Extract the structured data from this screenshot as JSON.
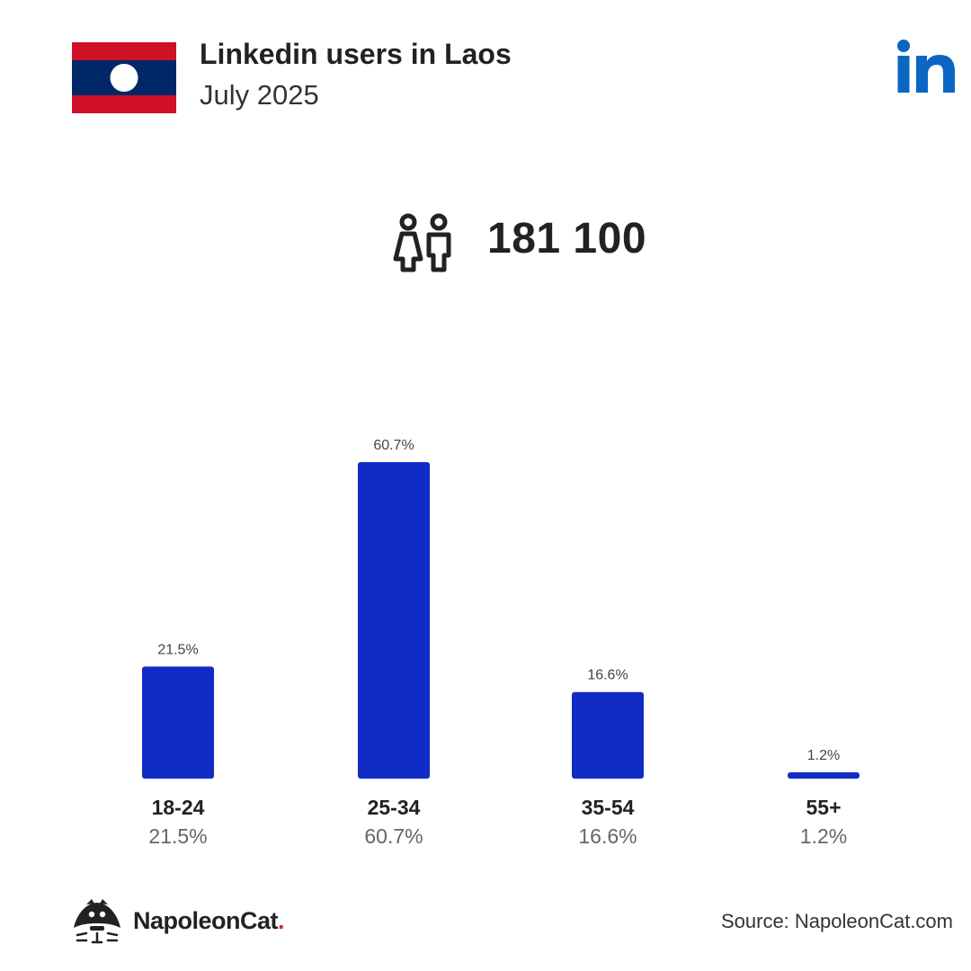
{
  "header": {
    "title": "Linkedin users in Laos",
    "subtitle": "July 2025",
    "flag_colors": {
      "red": "#ce1126",
      "blue": "#002868",
      "white": "#ffffff"
    },
    "linkedin_icon": "linkedin-logo-icon",
    "linkedin_color": "#0a66c2"
  },
  "summary": {
    "icon": "users-icon",
    "total": "181 100"
  },
  "chart_data": {
    "type": "bar",
    "title": "",
    "xlabel": "",
    "ylabel": "",
    "ylim": [
      0,
      60.7
    ],
    "grid": false,
    "bar_color": "#102cc4",
    "categories": [
      "18-24",
      "25-34",
      "35-54",
      "55+"
    ],
    "values": [
      21.5,
      60.7,
      16.6,
      1.2
    ],
    "value_labels": [
      "21.5%",
      "60.7%",
      "16.6%",
      "1.2%"
    ]
  },
  "footer": {
    "brand_name": "NapoleonCat",
    "brand_dot": ".",
    "brand_icon": "napoleoncat-logo-icon",
    "source": "Source: NapoleonCat.com"
  }
}
